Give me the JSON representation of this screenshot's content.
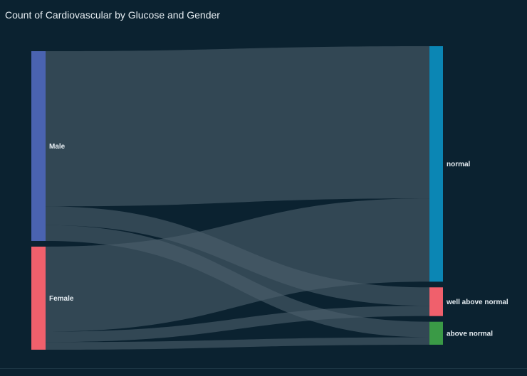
{
  "visual": {
    "title": "Count of Cardiovascular by Glucose and Gender"
  },
  "chart_data": {
    "type": "sankey",
    "title": "Count of Cardiovascular by Glucose and Gender",
    "sources": [
      {
        "name": "Male",
        "color": "#4a63b0"
      },
      {
        "name": "Female",
        "color": "#f0606c"
      }
    ],
    "targets": [
      {
        "name": "normal",
        "color": "#0b86b4"
      },
      {
        "name": "well above normal",
        "color": "#f0606c"
      },
      {
        "name": "above normal",
        "color": "#3a9a46"
      }
    ],
    "links": [
      {
        "source": "Male",
        "target": "normal",
        "value": 53.0
      },
      {
        "source": "Male",
        "target": "well above normal",
        "value": 6.4
      },
      {
        "source": "Male",
        "target": "above normal",
        "value": 5.4
      },
      {
        "source": "Female",
        "target": "normal",
        "value": 29.0
      },
      {
        "source": "Female",
        "target": "well above normal",
        "value": 3.6
      },
      {
        "source": "Female",
        "target": "above normal",
        "value": 2.6
      }
    ],
    "link_color": "#4a5e6b"
  }
}
